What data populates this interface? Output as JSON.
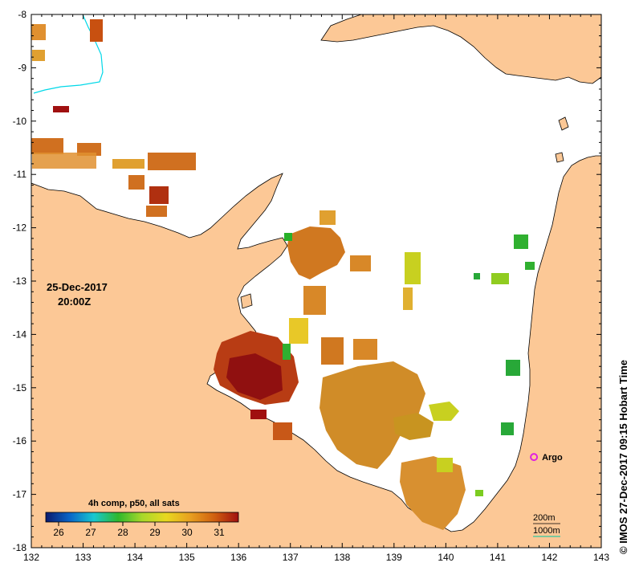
{
  "map": {
    "date": "25-Dec-2017",
    "time": "20:00Z",
    "colorbar_title": "4h comp, p50, all sats",
    "colorbar_ticks": [
      "26",
      "27",
      "28",
      "29",
      "30",
      "31"
    ],
    "colorbar_range": [
      25.6,
      31.6
    ],
    "colorbar_stops": [
      "#0a1a6e",
      "#0a66c8",
      "#19c8d0",
      "#2db82d",
      "#a8d82a",
      "#e8d820",
      "#e8a020",
      "#d06010",
      "#a01010"
    ],
    "x_ticks": [
      "132",
      "133",
      "134",
      "135",
      "136",
      "137",
      "138",
      "139",
      "140",
      "141",
      "142",
      "143"
    ],
    "y_ticks": [
      "-8",
      "-9",
      "-10",
      "-11",
      "-12",
      "-13",
      "-14",
      "-15",
      "-16",
      "-17",
      "-18"
    ],
    "lon_range": [
      132,
      143
    ],
    "lat_range": [
      -8,
      -18
    ],
    "argo": {
      "label": "Argo",
      "lon": 141.7,
      "lat": -16.3,
      "color": "#e020e0"
    },
    "contours": {
      "label_200": "200m",
      "label_1000": "1000m",
      "color_1000": "#30c8a0"
    },
    "credit": "© IMOS 27-Dec-2017 09:15 Hobart Time",
    "colors": {
      "land": "#fcc896",
      "sea": "#ffffff",
      "coast": "#000000",
      "river": "#00d8e8"
    }
  }
}
